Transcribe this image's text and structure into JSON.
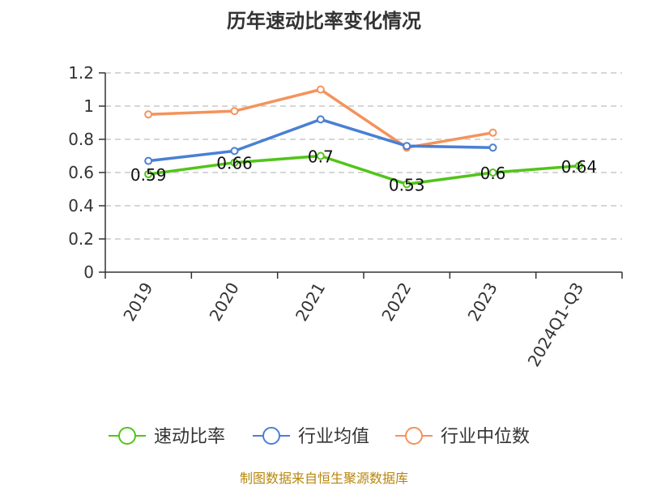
{
  "chart_data": {
    "type": "line",
    "title": "历年速动比率变化情况",
    "categories": [
      "2019",
      "2020",
      "2021",
      "2022",
      "2023",
      "2024Q1-Q3"
    ],
    "ylim": [
      0,
      1.2
    ],
    "yticks": [
      "0",
      "0.2",
      "0.4",
      "0.6",
      "0.8",
      "1",
      "1.2"
    ],
    "ytick_values": [
      0,
      0.2,
      0.4,
      0.6,
      0.8,
      1.0,
      1.2
    ],
    "grid": true,
    "legend_position": "bottom",
    "series": [
      {
        "name": "速动比率",
        "color": "#52c41a",
        "values": [
          0.59,
          0.66,
          0.7,
          0.53,
          0.6,
          0.64
        ],
        "labels": [
          "0.59",
          "0.66",
          "0.7",
          "0.53",
          "0.6",
          "0.64"
        ],
        "show_labels": true
      },
      {
        "name": "行业均值",
        "color": "#4a7fd4",
        "values": [
          0.67,
          0.73,
          0.92,
          0.76,
          0.75,
          null
        ],
        "show_labels": false
      },
      {
        "name": "行业中位数",
        "color": "#f5925c",
        "values": [
          0.95,
          0.97,
          1.1,
          0.75,
          0.84,
          null
        ],
        "show_labels": false
      }
    ],
    "source": "制图数据来自恒生聚源数据库"
  }
}
